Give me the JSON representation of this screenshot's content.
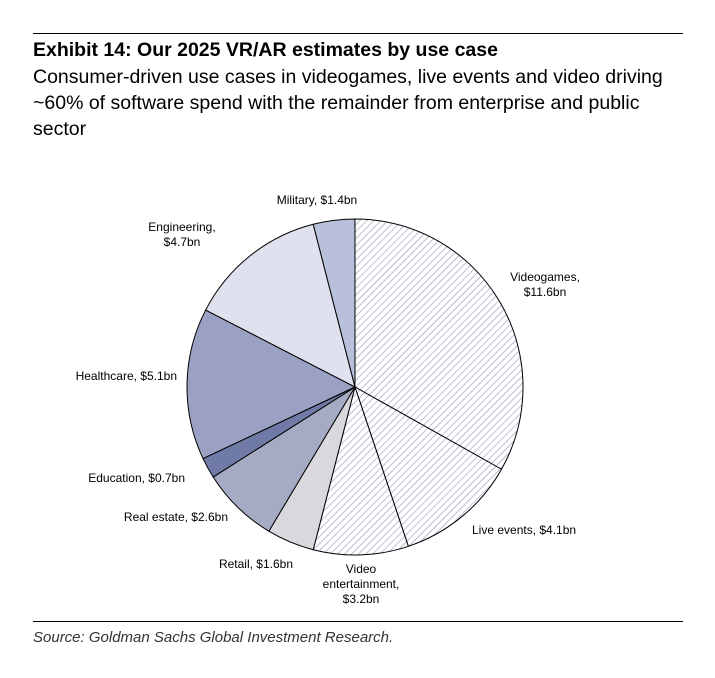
{
  "exhibit": {
    "title": "Exhibit 14: Our 2025 VR/AR estimates by use case",
    "subtitle": "Consumer-driven use cases in videogames, live events and video driving ~60% of software spend with the remainder from enterprise and public sector"
  },
  "chart_data": {
    "type": "pie",
    "title": "Our 2025 VR/AR estimates by use case",
    "unit": "$bn",
    "start": "12 o'clock",
    "direction": "clockwise",
    "slices": [
      {
        "name": "Videogames",
        "value": 11.6,
        "label": [
          "Videogames,",
          "$11.6bn"
        ],
        "fill": "hatch",
        "color": "#aab3d2"
      },
      {
        "name": "Live events",
        "value": 4.1,
        "label": [
          "Live events, $4.1bn"
        ],
        "fill": "hatch",
        "color": "#aab3d2"
      },
      {
        "name": "Video entertainment",
        "value": 3.2,
        "label": [
          "Video",
          "entertainment,",
          "$3.2bn"
        ],
        "fill": "hatch",
        "color": "#aab3d2"
      },
      {
        "name": "Retail",
        "value": 1.6,
        "label": [
          "Retail, $1.6bn"
        ],
        "fill": "solid",
        "color": "#d9d9dd"
      },
      {
        "name": "Real estate",
        "value": 2.6,
        "label": [
          "Real estate, $2.6bn"
        ],
        "fill": "solid",
        "color": "#a6abc4"
      },
      {
        "name": "Education",
        "value": 0.7,
        "label": [
          "Education, $0.7bn"
        ],
        "fill": "solid",
        "color": "#6f7ba6"
      },
      {
        "name": "Healthcare",
        "value": 5.1,
        "label": [
          "Healthcare, $5.1bn"
        ],
        "fill": "solid",
        "color": "#9aa1c3"
      },
      {
        "name": "Engineering",
        "value": 4.7,
        "label": [
          "Engineering,",
          "$4.7bn"
        ],
        "fill": "solid",
        "color": "#dfe1ee"
      },
      {
        "name": "Military",
        "value": 1.4,
        "label": [
          "Military, $1.4bn"
        ],
        "fill": "solid",
        "color": "#b9c0dc"
      }
    ]
  },
  "source": "Source: Goldman Sachs Global Investment Research."
}
